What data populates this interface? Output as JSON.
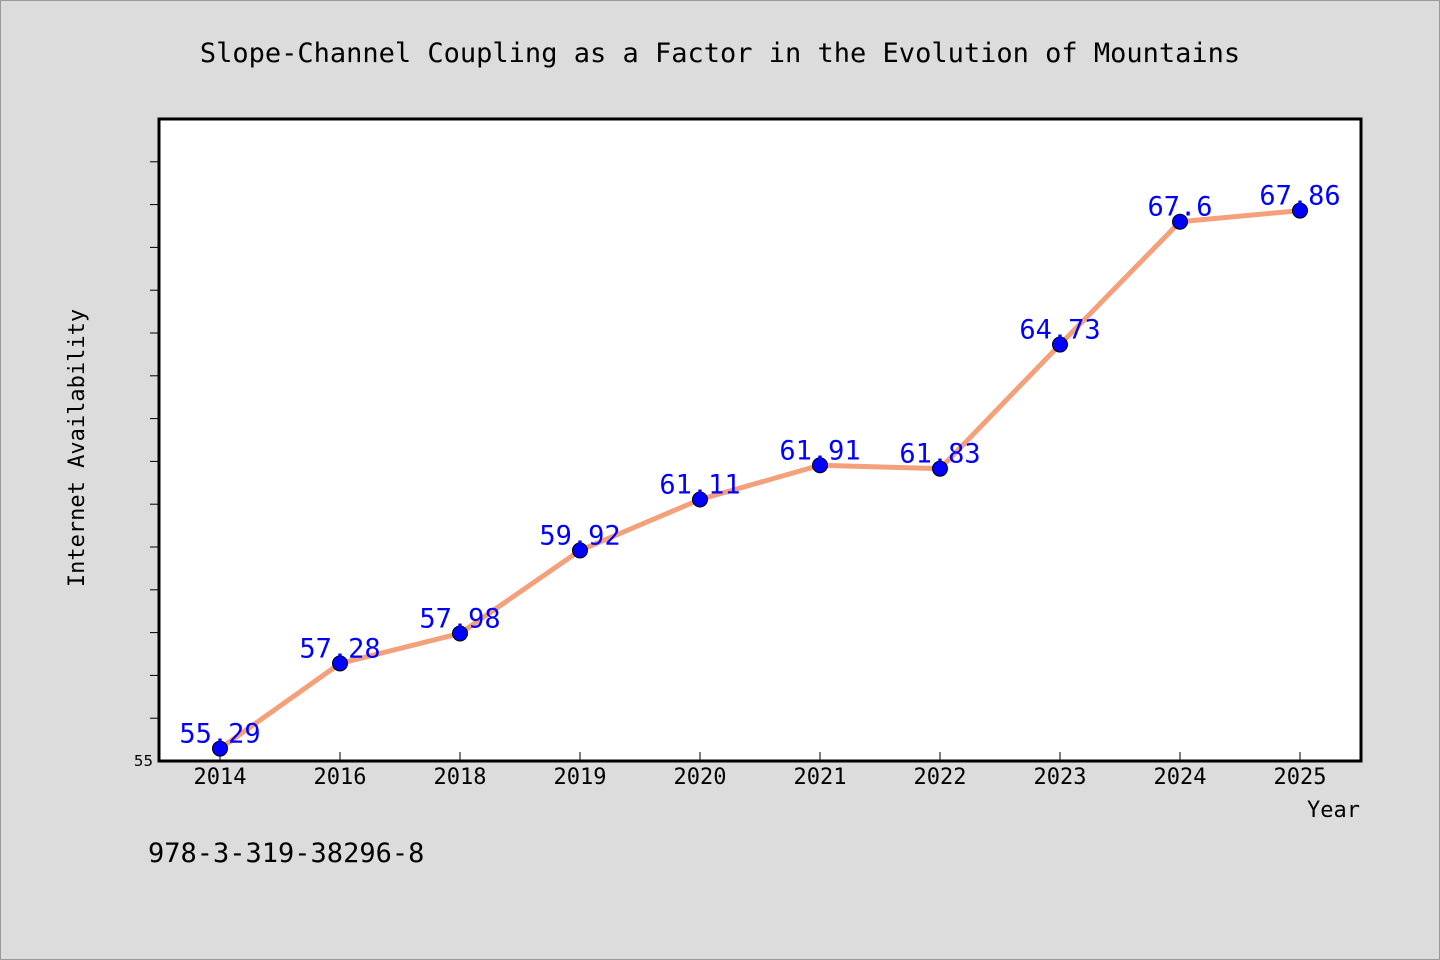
{
  "chart_data": {
    "type": "line",
    "title": "Slope-Channel Coupling as a Factor in the Evolution of Mountains",
    "xlabel": "Year",
    "ylabel": "Internet Availability",
    "categories": [
      "2014",
      "2016",
      "2018",
      "2019",
      "2020",
      "2021",
      "2022",
      "2023",
      "2024",
      "2025"
    ],
    "series": [
      {
        "values": [
          55.29,
          57.28,
          57.98,
          59.92,
          61.11,
          61.91,
          61.83,
          64.73,
          67.6,
          67.86
        ],
        "data_labels": [
          "55.29",
          "57.28",
          "57.98",
          "59.92",
          "61.11",
          "61.91",
          "61.83",
          "64.73",
          "67.6",
          "67.86"
        ]
      }
    ],
    "yticks": [
      "55"
    ],
    "ylim": [
      55,
      70
    ],
    "grid": false,
    "legend": "none",
    "line_color": "#f4a07a",
    "marker_color": "#0000ff"
  },
  "footer": {
    "isbn": "978-3-319-38296-8"
  }
}
